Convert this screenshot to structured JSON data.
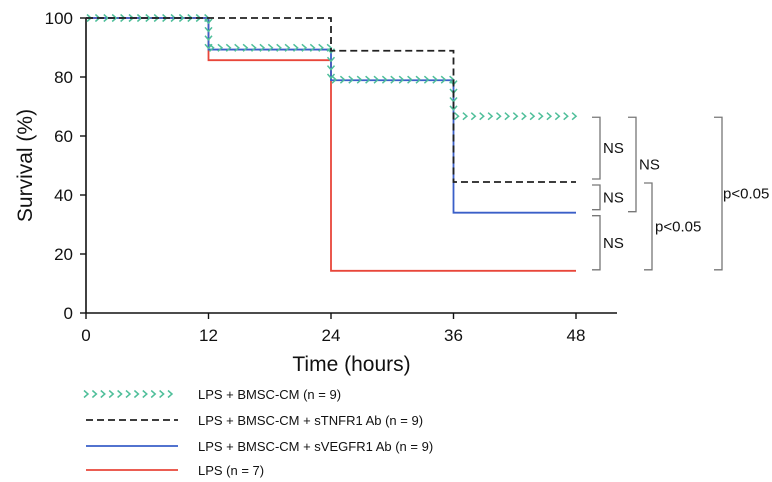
{
  "chart_data": {
    "type": "line",
    "subtype": "kaplan-meier step",
    "xlabel": "Time (hours)",
    "ylabel": "Survival (%)",
    "xlim": [
      0,
      48
    ],
    "ylim": [
      0,
      100
    ],
    "xticks": [
      0,
      12,
      24,
      36,
      48
    ],
    "yticks": [
      0,
      20,
      40,
      60,
      80,
      100
    ],
    "grid": false,
    "legend_position": "bottom-left",
    "series": [
      {
        "name": "LPS + BMSC-CM (n = 9)",
        "color": "#4fbf9a",
        "style": "arrow-markers",
        "x": [
          0,
          12,
          24,
          36,
          48
        ],
        "y": [
          100,
          89.9,
          79.1,
          66.7,
          66.7
        ]
      },
      {
        "name": "LPS + BMSC-CM + sTNFR1 Ab (n = 9)",
        "color": "#222222",
        "style": "dashed",
        "x": [
          0,
          24,
          36,
          48
        ],
        "y": [
          100,
          88.9,
          44.4,
          44.4
        ]
      },
      {
        "name": "LPS + BMSC-CM + sVEGFR1 Ab (n = 9)",
        "color": "#3a5fc8",
        "style": "solid",
        "x": [
          0,
          12,
          24,
          36,
          48
        ],
        "y": [
          100,
          89.3,
          78.9,
          34,
          34
        ]
      },
      {
        "name": "LPS (n = 7)",
        "color": "#e8463a",
        "style": "solid",
        "x": [
          0,
          12,
          24,
          48
        ],
        "y": [
          100,
          85.7,
          14.3,
          14.3
        ]
      }
    ],
    "annotations": [
      {
        "label": "NS",
        "from": 66.7,
        "to": 44.4
      },
      {
        "label": "NS",
        "from": 44.4,
        "to": 34
      },
      {
        "label": "NS",
        "from": 34,
        "to": 14.3
      },
      {
        "label": "NS",
        "from": 66.7,
        "to": 34
      },
      {
        "label": "p<0.05",
        "from": 44.4,
        "to": 14.3
      },
      {
        "label": "p<0.05",
        "from": 66.7,
        "to": 14.3
      }
    ]
  }
}
